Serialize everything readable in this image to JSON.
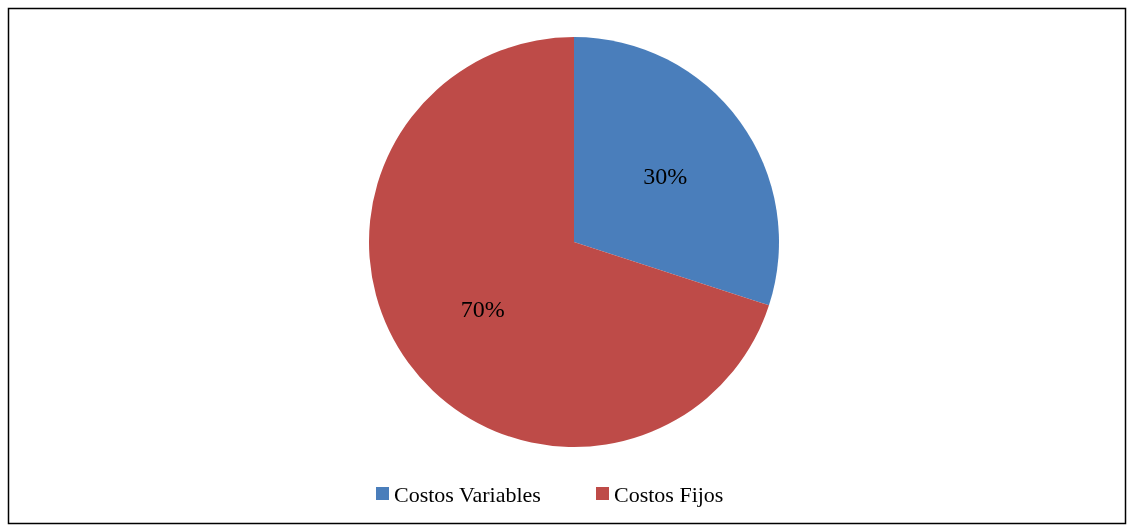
{
  "chart_data": {
    "type": "pie",
    "categories": [
      "Costos Variables",
      "Costos Fijos"
    ],
    "values": [
      30,
      70
    ],
    "colors": [
      "#4a7ebb",
      "#be4b48"
    ],
    "value_labels": [
      "30%",
      "70%"
    ],
    "legend": "bottom"
  }
}
